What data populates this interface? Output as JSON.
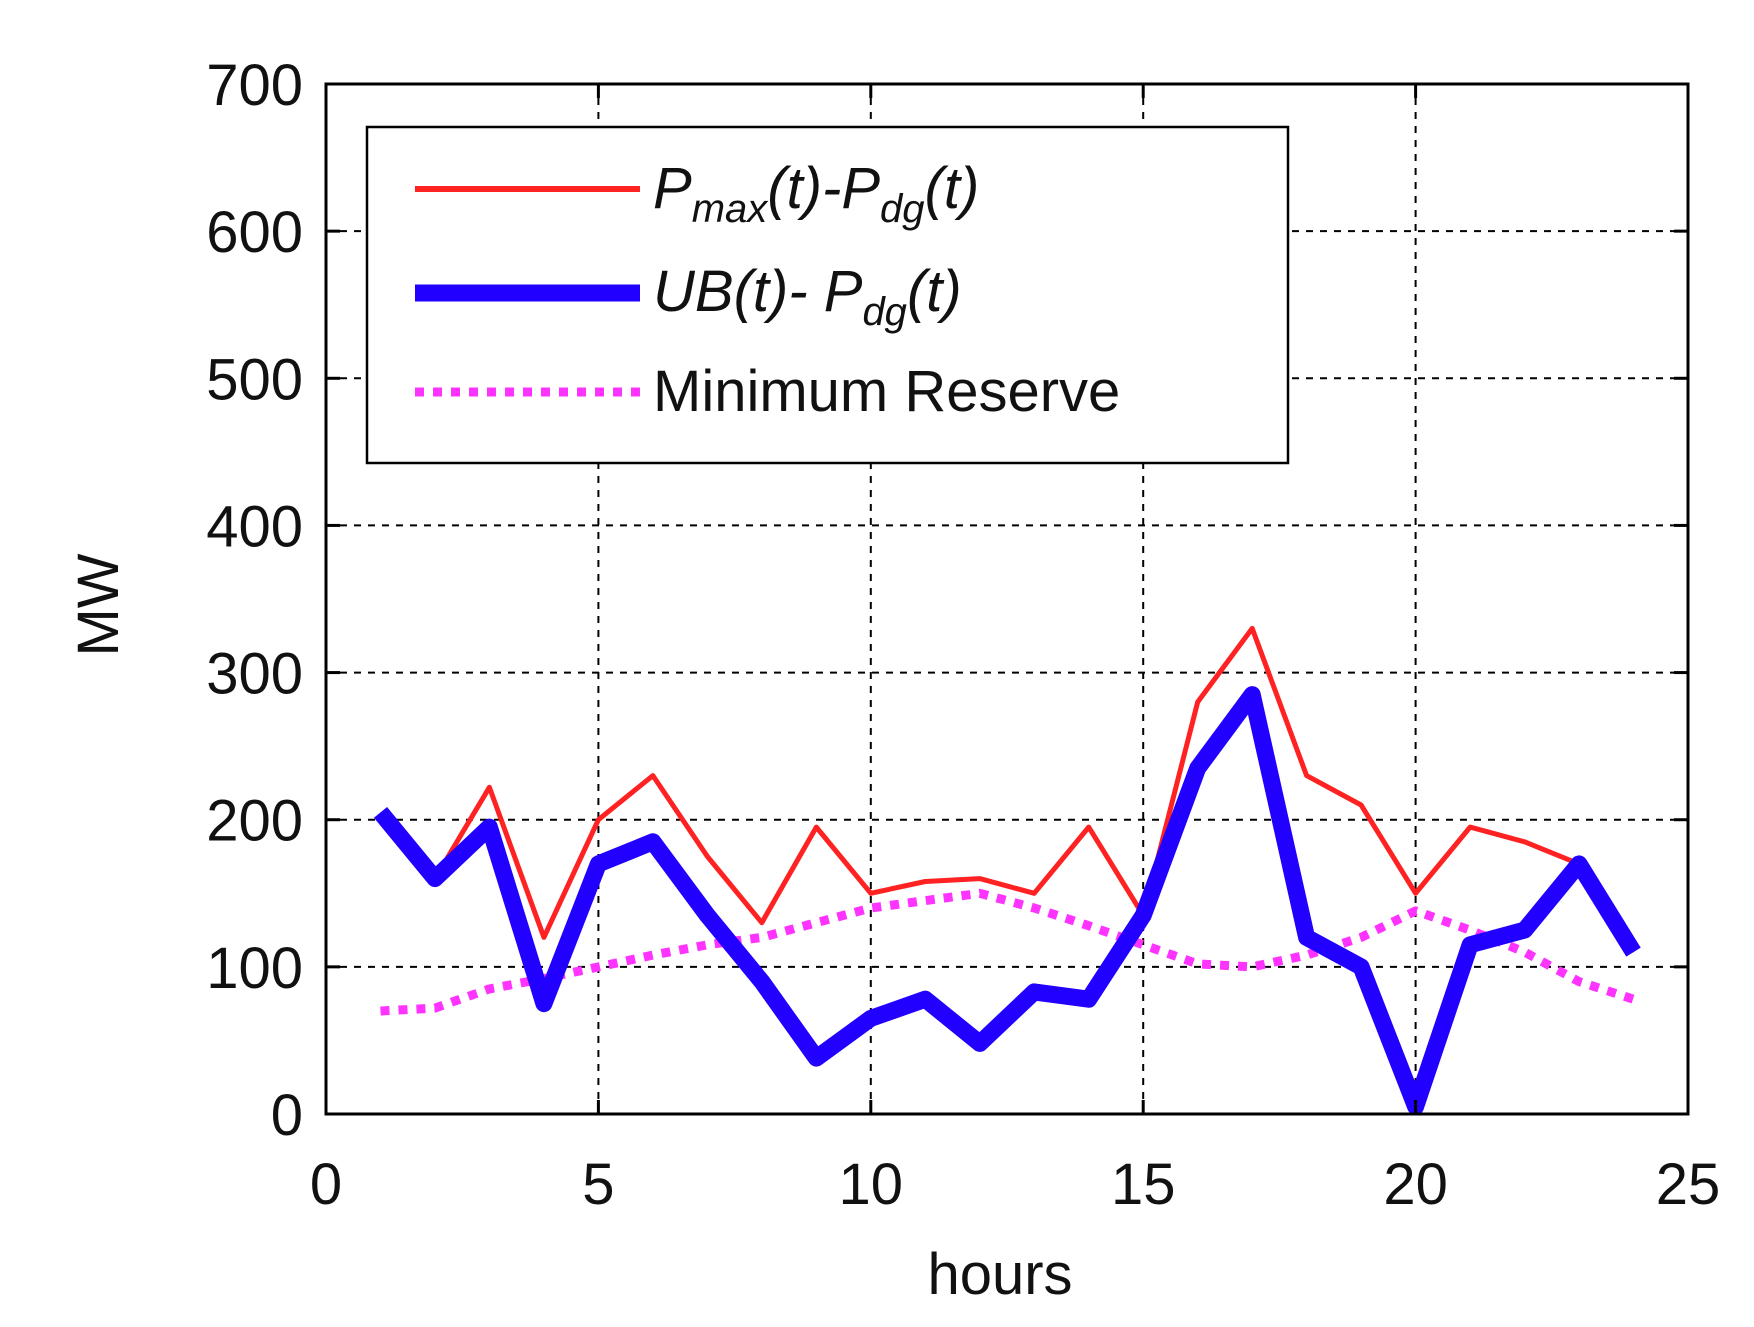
{
  "chart_data": {
    "type": "line",
    "title": "",
    "xlabel": "hours",
    "ylabel": "MW",
    "xlim": [
      0,
      25
    ],
    "ylim": [
      0,
      700
    ],
    "xticks": [
      0,
      5,
      10,
      15,
      20,
      25
    ],
    "yticks": [
      0,
      100,
      200,
      300,
      400,
      500,
      600,
      700
    ],
    "xtick_labels": [
      "0",
      "5",
      "10",
      "15",
      "20",
      "25"
    ],
    "ytick_labels": [
      "0",
      "100",
      "200",
      "300",
      "400",
      "500",
      "600",
      "700"
    ],
    "grid": true,
    "legend_position": "top-left",
    "x": [
      1,
      2,
      3,
      4,
      5,
      6,
      7,
      8,
      9,
      10,
      11,
      12,
      13,
      14,
      15,
      16,
      17,
      18,
      19,
      20,
      21,
      22,
      23,
      24
    ],
    "series": [
      {
        "name": "Pmax(t)-Pdg(t)",
        "legend": {
          "main1": "P",
          "sub1": "max",
          "mid": "(t)-P",
          "sub2": "dg",
          "end": "(t)"
        },
        "color": "#ff2222",
        "style": "solid",
        "values": [
          200,
          160,
          222,
          120,
          200,
          230,
          175,
          130,
          195,
          150,
          158,
          160,
          150,
          195,
          135,
          280,
          330,
          230,
          210,
          150,
          195,
          185,
          170,
          110
        ]
      },
      {
        "name": "UB(t)- Pdg(t)",
        "legend": {
          "main1": "UB(t)- P",
          "sub1": "dg",
          "end": "(t)"
        },
        "color": "#2200ff",
        "style": "thick",
        "values": [
          205,
          160,
          195,
          75,
          170,
          185,
          135,
          90,
          38,
          65,
          78,
          48,
          83,
          78,
          135,
          235,
          285,
          120,
          100,
          5,
          115,
          125,
          170,
          110
        ]
      },
      {
        "name": "Minimum Reserve",
        "legend": {
          "label": "Minimum Reserve"
        },
        "color": "#ff33ff",
        "style": "dotted",
        "values": [
          70,
          72,
          85,
          92,
          100,
          108,
          115,
          120,
          130,
          140,
          145,
          150,
          140,
          128,
          115,
          102,
          100,
          108,
          120,
          138,
          125,
          110,
          90,
          78
        ]
      }
    ]
  }
}
